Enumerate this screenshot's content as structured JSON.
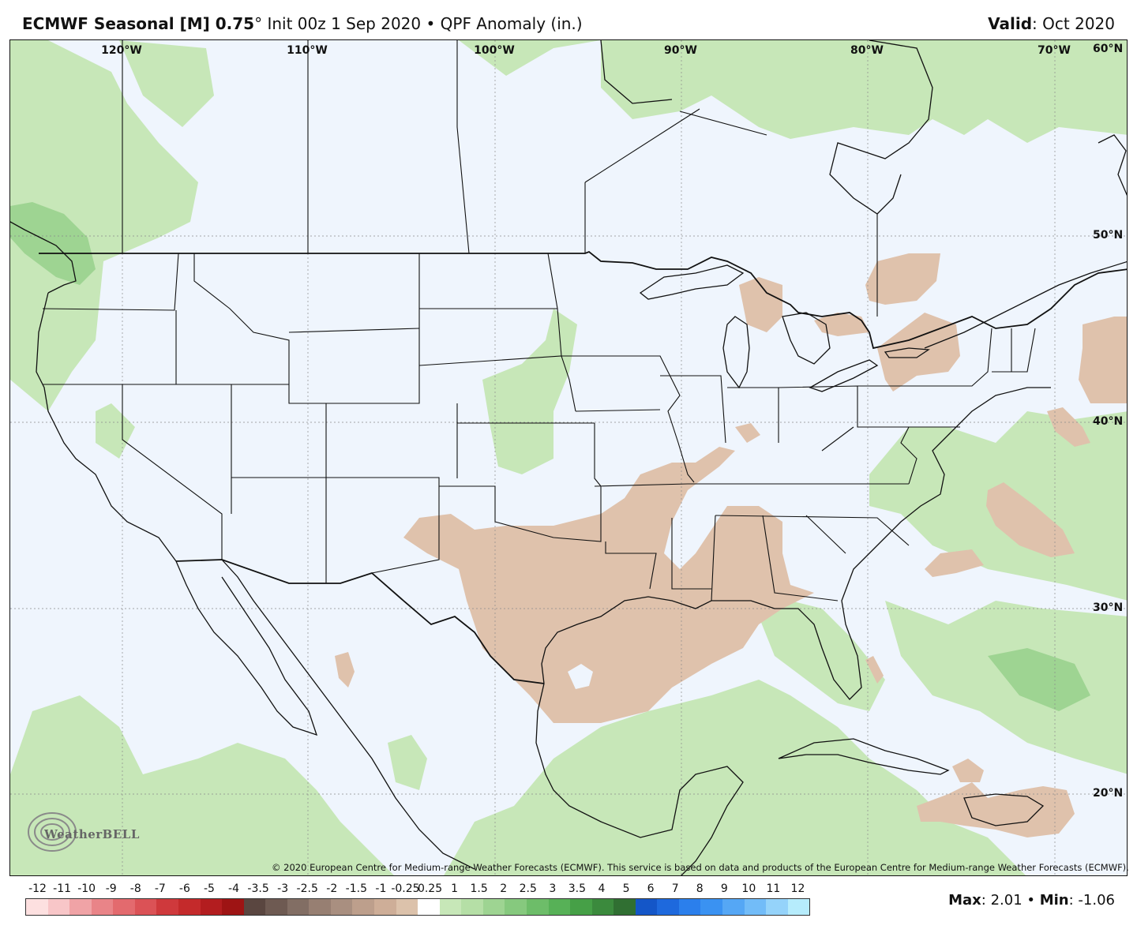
{
  "header": {
    "model": "ECMWF Seasonal [M] 0.75",
    "degree": "°",
    "init": "Init 00z 1 Sep 2020",
    "bullet": "•",
    "field": "QPF Anomaly (in.)",
    "valid_label": "Valid",
    "valid_value": "Oct 2020"
  },
  "map": {
    "lon_labels": [
      "120°W",
      "110°W",
      "100°W",
      "90°W",
      "80°W",
      "70°W"
    ],
    "lat_labels": [
      "60°N",
      "50°N",
      "40°N",
      "30°N",
      "20°N"
    ],
    "copyright": "© 2020 European Centre for Medium-range Weather Forecasts (ECMWF). This service is based on data and products of the European Centre for Medium-range Weather Forecasts (ECMWF).",
    "logo_text": "WeatherBELL",
    "colors": {
      "background": "#eff5fd",
      "positive_light": "#c7e7b8",
      "positive_mid": "#9ed492",
      "negative_light": "#dfc2ac",
      "borders": "#111111"
    }
  },
  "colorbar": {
    "ticks": [
      "-12",
      "-11",
      "-10",
      "-9",
      "-8",
      "-7",
      "-6",
      "-5",
      "-4",
      "-3.5",
      "-3",
      "-2.5",
      "-2",
      "-1.5",
      "-1",
      "-0.25",
      "0.25",
      "1",
      "1.5",
      "2",
      "2.5",
      "3",
      "3.5",
      "4",
      "5",
      "6",
      "7",
      "8",
      "9",
      "10",
      "11",
      "12"
    ],
    "colors": [
      "#fde0e0",
      "#f8c6c8",
      "#f0a3a6",
      "#e98488",
      "#e36a6e",
      "#db5256",
      "#cf393c",
      "#c42a2b",
      "#b31d1f",
      "#9e1414",
      "#5a4640",
      "#6e5a52",
      "#826e64",
      "#977f72",
      "#a98f80",
      "#bd9f8c",
      "#ceae98",
      "#dcc2ab",
      "#ffffff",
      "#c7e7b8",
      "#b5dfa6",
      "#9ed492",
      "#86c97e",
      "#6dbd69",
      "#57b157",
      "#46a047",
      "#3b8a3d",
      "#306f32",
      "#1456c8",
      "#1e69dd",
      "#2b7fec",
      "#3a92f2",
      "#55a7f5",
      "#72bcf8",
      "#95d3fa",
      "#b6ecfc"
    ]
  },
  "stats": {
    "max_label": "Max",
    "max_value": "2.01",
    "min_label": "Min",
    "min_value": "-1.06"
  }
}
